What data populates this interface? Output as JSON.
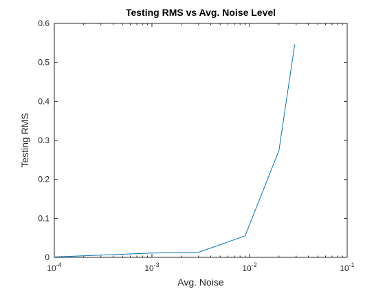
{
  "chart_data": {
    "type": "line",
    "title": "Testing RMS vs Avg. Noise Level",
    "xlabel": "Avg. Noise",
    "ylabel": "Testing RMS",
    "xscale": "log",
    "xlim": [
      0.0001,
      0.1
    ],
    "ylim": [
      0,
      0.6
    ],
    "grid": false,
    "box": true,
    "x_ticks": [
      {
        "value": 0.0001,
        "base": "10",
        "exp": "-4"
      },
      {
        "value": 0.001,
        "base": "10",
        "exp": "-3"
      },
      {
        "value": 0.01,
        "base": "10",
        "exp": "-2"
      },
      {
        "value": 0.1,
        "base": "10",
        "exp": "-1"
      }
    ],
    "y_ticks": [
      {
        "value": 0,
        "label": "0"
      },
      {
        "value": 0.1,
        "label": "0.1"
      },
      {
        "value": 0.2,
        "label": "0.2"
      },
      {
        "value": 0.3,
        "label": "0.3"
      },
      {
        "value": 0.4,
        "label": "0.4"
      },
      {
        "value": 0.5,
        "label": "0.5"
      },
      {
        "value": 0.6,
        "label": "0.6"
      }
    ],
    "series": [
      {
        "color": "#0072BD",
        "x": [
          0.0001,
          0.001,
          0.003,
          0.009,
          0.02,
          0.029
        ],
        "y": [
          0.001,
          0.011,
          0.013,
          0.055,
          0.274,
          0.546
        ]
      }
    ]
  }
}
